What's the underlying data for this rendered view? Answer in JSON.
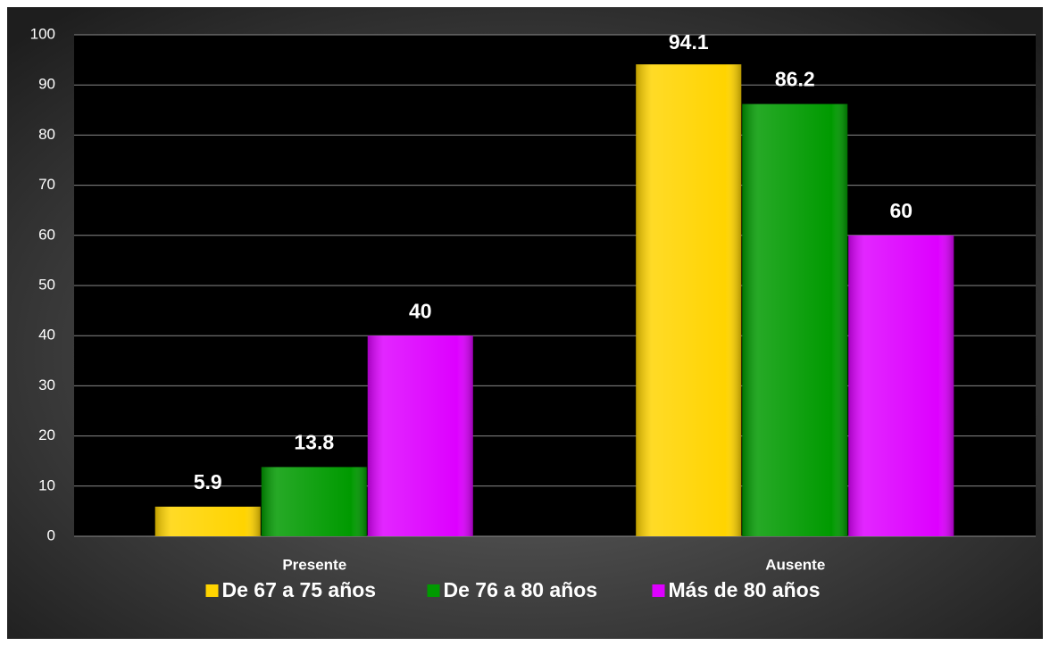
{
  "chart_data": {
    "type": "bar",
    "categories": [
      "Presente",
      "Ausente"
    ],
    "series": [
      {
        "name": "De 67 a 75 años",
        "color": "#ffd400",
        "values": [
          5.9,
          94.1
        ]
      },
      {
        "name": "De 76 a 80 años",
        "color": "#009a00",
        "values": [
          13.8,
          86.2
        ]
      },
      {
        "name": "Más de 80 años",
        "color": "#dd00ff",
        "values": [
          40,
          60
        ]
      }
    ],
    "ylim": [
      0,
      100
    ],
    "yticks": [
      0,
      10,
      20,
      30,
      40,
      50,
      60,
      70,
      80,
      90,
      100
    ],
    "grid": true,
    "legend": "bottom"
  }
}
